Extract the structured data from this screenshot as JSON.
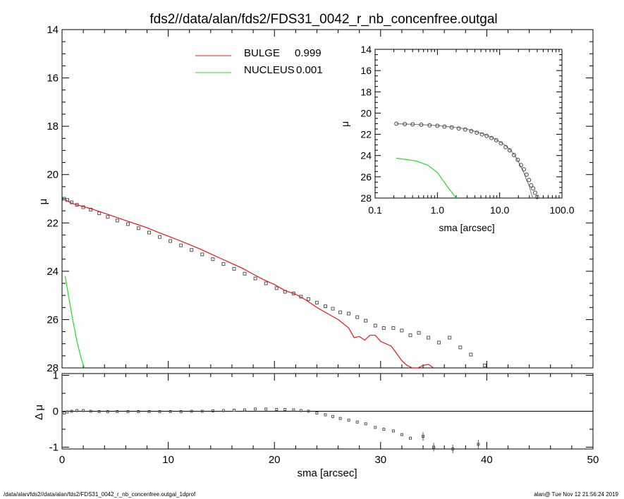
{
  "title": "fds2//data/alan/fds2/FDS31_0042_r_nb_concenfree.outgal",
  "footer": {
    "left": "/data/alan/fds2//data/alan/fds2/FDS31_0042_r_nb_concenfree.outgal_1dprof",
    "right": "alan@  Tue Nov 12 21:56:24 2019"
  },
  "colors": {
    "bulge": "#e8141c",
    "nucleus": "#22dd22",
    "data": "#555555",
    "axes": "#000000"
  },
  "chart_data": [
    {
      "type": "line",
      "panel": "main",
      "xlabel": "",
      "ylabel": "μ",
      "xlim": [
        0,
        50
      ],
      "ylim": [
        28,
        14
      ],
      "y_inverted": true,
      "yticks": [
        "14",
        "16",
        "18",
        "20",
        "22",
        "24",
        "26",
        "28"
      ],
      "legend": [
        {
          "name": "BULGE",
          "value": "0.999",
          "color": "#e8141c"
        },
        {
          "name": "NUCLEUS",
          "value": "0.001",
          "color": "#22dd22"
        }
      ],
      "legend_placement": "top",
      "series": [
        {
          "name": "data",
          "kind": "points",
          "x": [
            0.2,
            0.5,
            0.9,
            1.4,
            2.0,
            2.7,
            3.5,
            4.3,
            5.2,
            6.2,
            7.2,
            8.2,
            9.2,
            10.2,
            11.2,
            12.2,
            13.2,
            14.2,
            15.2,
            16.2,
            17.2,
            18.2,
            19.2,
            20.2,
            21.0,
            21.8,
            22.5,
            23.2,
            24.0,
            24.8,
            25.5,
            26.2,
            27.0,
            27.8,
            28.6,
            29.5,
            30.3,
            31.2,
            32.0,
            32.8,
            33.6,
            34.5,
            35.5,
            36.5,
            37.5,
            38.5,
            39.8
          ],
          "y": [
            21.0,
            21.05,
            21.15,
            21.25,
            21.35,
            21.45,
            21.6,
            21.75,
            21.9,
            22.05,
            22.22,
            22.4,
            22.58,
            22.75,
            22.93,
            23.12,
            23.3,
            23.5,
            23.7,
            23.9,
            24.1,
            24.3,
            24.5,
            24.7,
            24.85,
            24.92,
            25.05,
            25.15,
            25.3,
            25.45,
            25.55,
            25.7,
            25.75,
            25.9,
            26.05,
            26.25,
            26.35,
            26.35,
            26.45,
            26.65,
            26.55,
            26.75,
            26.95,
            26.75,
            27.15,
            27.45,
            27.9
          ]
        },
        {
          "name": "BULGE",
          "kind": "line",
          "x": [
            0.3,
            1,
            2,
            3,
            4,
            5,
            6,
            7,
            8,
            9,
            10,
            11,
            12,
            13,
            14,
            15,
            16,
            17,
            18,
            19,
            20,
            21,
            22,
            23,
            24,
            25,
            26,
            27,
            27.5,
            28,
            28.5,
            29,
            29.5,
            30,
            31,
            31.5,
            32,
            32.5,
            33,
            33.5,
            34,
            34.5,
            35
          ],
          "y": [
            21.05,
            21.2,
            21.32,
            21.45,
            21.6,
            21.75,
            21.9,
            22.05,
            22.2,
            22.38,
            22.55,
            22.72,
            22.9,
            23.08,
            23.28,
            23.48,
            23.68,
            23.88,
            24.12,
            24.35,
            24.55,
            24.8,
            24.95,
            25.2,
            25.5,
            25.75,
            26.0,
            26.35,
            26.75,
            26.7,
            26.85,
            26.65,
            26.65,
            26.9,
            27.1,
            27.4,
            27.7,
            27.9,
            28.05,
            28.0,
            27.9,
            27.85,
            28.1
          ]
        },
        {
          "name": "NUCLEUS",
          "kind": "line",
          "x": [
            0.3,
            0.6,
            1.0,
            1.4,
            1.8,
            2.1
          ],
          "y": [
            24.2,
            25.0,
            26.0,
            26.9,
            27.6,
            28.1
          ]
        }
      ]
    },
    {
      "type": "scatter",
      "panel": "residual",
      "xlabel": "sma [arcsec]",
      "ylabel": "Δ μ",
      "xlim": [
        0,
        50
      ],
      "ylim": [
        -1.05,
        1.05
      ],
      "xticks": [
        "0",
        "10",
        "20",
        "30",
        "40",
        "50"
      ],
      "yticks": [
        "-1",
        "0",
        "1"
      ],
      "zero_line": true,
      "series": [
        {
          "name": "residual",
          "x": [
            0.2,
            0.5,
            0.9,
            1.4,
            2.0,
            2.7,
            3.5,
            4.3,
            5.2,
            6.2,
            7.2,
            8.2,
            9.2,
            10.2,
            11.2,
            12.2,
            13.2,
            14.2,
            15.2,
            16.2,
            17.2,
            18.2,
            19.2,
            20.2,
            21.0,
            21.8,
            22.5,
            23.2,
            24.0,
            24.8,
            25.5,
            26.2,
            27.0,
            27.8,
            28.6,
            29.5,
            30.3,
            31.2,
            32.0,
            32.8,
            34.0,
            35.0,
            36.8,
            39.2
          ],
          "y": [
            -0.05,
            -0.02,
            0.0,
            0.02,
            0.02,
            0.0,
            -0.01,
            -0.01,
            -0.01,
            -0.01,
            -0.01,
            -0.01,
            -0.01,
            -0.01,
            -0.01,
            0.0,
            0.0,
            0.01,
            0.02,
            0.03,
            0.04,
            0.06,
            0.06,
            0.05,
            0.05,
            0.04,
            0.02,
            0.0,
            -0.05,
            -0.1,
            -0.15,
            -0.2,
            -0.25,
            -0.3,
            -0.35,
            -0.45,
            -0.5,
            -0.55,
            -0.65,
            -0.75,
            -0.7,
            -1.0,
            -1.05,
            -0.92
          ]
        }
      ]
    },
    {
      "type": "line",
      "panel": "inset",
      "xlabel": "sma [arcsec]",
      "ylabel": "μ",
      "x_scale": "log",
      "xlim": [
        0.1,
        100
      ],
      "ylim": [
        28,
        14
      ],
      "y_inverted": true,
      "xticks": [
        "0.1",
        "1.0",
        "10.0",
        "100.0"
      ],
      "yticks": [
        "14",
        "16",
        "18",
        "20",
        "22",
        "24",
        "26",
        "28"
      ],
      "series": [
        {
          "name": "data",
          "kind": "points",
          "x": [
            0.22,
            0.3,
            0.4,
            0.55,
            0.75,
            1.0,
            1.3,
            1.7,
            2.2,
            2.8,
            3.5,
            4.3,
            5.2,
            6.2,
            7.4,
            8.8,
            10.5,
            12.5,
            14.5,
            17.0,
            19.5,
            22.0,
            24.5,
            27.0,
            29.5,
            32.0,
            34.5,
            37.0,
            39.8
          ],
          "y": [
            21.0,
            21.03,
            21.06,
            21.1,
            21.15,
            21.2,
            21.27,
            21.35,
            21.45,
            21.55,
            21.7,
            21.85,
            22.0,
            22.15,
            22.35,
            22.55,
            22.85,
            23.2,
            23.5,
            23.95,
            24.4,
            24.9,
            25.3,
            25.8,
            26.3,
            26.8,
            27.1,
            27.5,
            27.9
          ]
        },
        {
          "name": "BULGE",
          "kind": "line",
          "x": [
            0.22,
            0.3,
            0.5,
            0.8,
            1.2,
            2,
            3,
            4,
            5,
            6,
            8,
            10,
            12,
            15,
            18,
            21,
            24,
            27,
            30,
            33,
            35
          ],
          "y": [
            21.0,
            21.03,
            21.08,
            21.14,
            21.22,
            21.35,
            21.52,
            21.72,
            21.9,
            22.05,
            22.38,
            22.7,
            23.0,
            23.5,
            24.1,
            24.8,
            25.5,
            26.3,
            26.9,
            27.8,
            28.1
          ]
        },
        {
          "name": "NUCLEUS",
          "kind": "line",
          "x": [
            0.22,
            0.3,
            0.45,
            0.7,
            1.0,
            1.4,
            2.0
          ],
          "y": [
            24.25,
            24.35,
            24.5,
            24.9,
            25.6,
            26.8,
            28.1
          ]
        }
      ]
    }
  ]
}
